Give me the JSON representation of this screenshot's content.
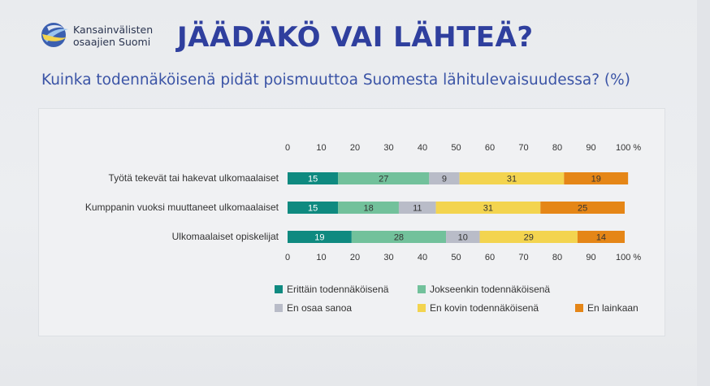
{
  "brand": {
    "line1": "Kansainvälisten",
    "line2": "osaajien Suomi"
  },
  "title": "JÄÄDÄKÖ VAI LÄHTEÄ?",
  "subtitle": "Kuinka todennäköisenä pidät poismuuttoa Suomesta lähitulevaisuudessa? (%)",
  "chart_data": {
    "type": "bar",
    "orientation": "horizontal",
    "stacked": true,
    "categories": [
      "Työtä tekevät tai hakevat ulkomaalaiset",
      "Kumppanin vuoksi muuttaneet ulkomaalaiset",
      "Ulkomaalaiset opiskelijat"
    ],
    "series": [
      {
        "name": "Erittäin todennäköisenä",
        "color": "#0f8a80",
        "values": [
          15,
          15,
          19
        ]
      },
      {
        "name": "Jokseenkin todennäköisenä",
        "color": "#72c19b",
        "values": [
          27,
          18,
          28
        ]
      },
      {
        "name": "En osaa sanoa",
        "color": "#b9bcc8",
        "values": [
          9,
          11,
          10
        ]
      },
      {
        "name": "En kovin todennäköisenä",
        "color": "#f3d44f",
        "values": [
          31,
          31,
          29
        ]
      },
      {
        "name": "En lainkaan",
        "color": "#e58617",
        "values": [
          19,
          25,
          14
        ]
      }
    ],
    "xticks": [
      "0",
      "10",
      "20",
      "30",
      "40",
      "50",
      "60",
      "70",
      "80",
      "90",
      "100 %"
    ],
    "xlim": [
      0,
      100
    ],
    "xlabel": "",
    "ylabel": "",
    "grid": false,
    "legend": "bottom"
  }
}
